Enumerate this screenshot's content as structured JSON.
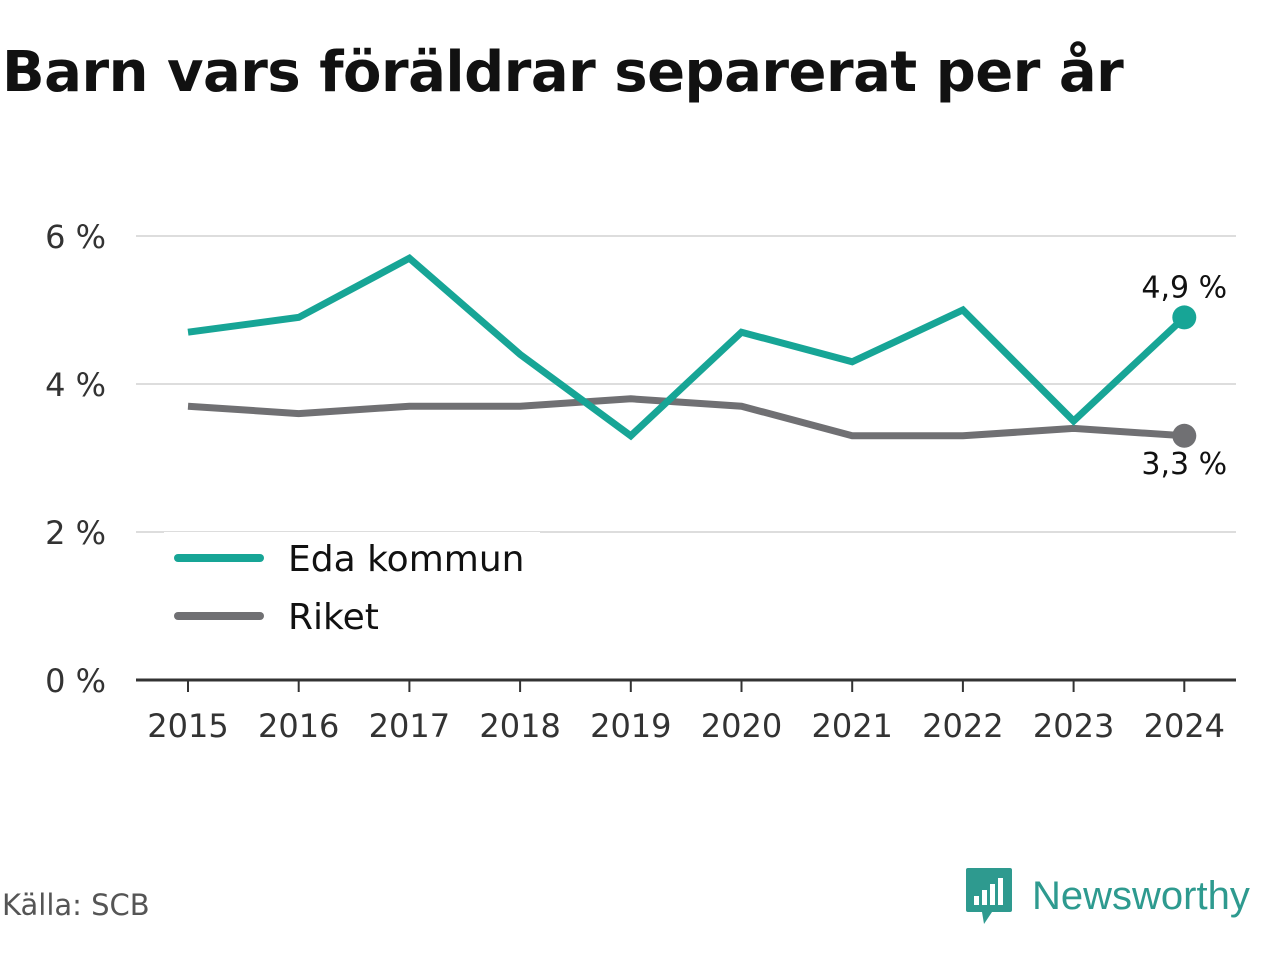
{
  "title": "Barn vars föräldrar separerat per år",
  "source": "Källa: SCB",
  "brand": {
    "name": "Newsworthy",
    "icon": "newsworthy-logo-icon"
  },
  "colors": {
    "eda": "#17a596",
    "riket": "#707073",
    "grid": "#dddddd",
    "axis": "#333333"
  },
  "chart_data": {
    "type": "line",
    "x": [
      "2015",
      "2016",
      "2017",
      "2018",
      "2019",
      "2020",
      "2021",
      "2022",
      "2023",
      "2024"
    ],
    "ylim": [
      0,
      6
    ],
    "yticks": [
      0,
      2,
      4,
      6
    ],
    "ytick_labels": [
      "0 %",
      "2 %",
      "4 %",
      "6 %"
    ],
    "grid": true,
    "legend_position": "bottom-left",
    "series": [
      {
        "name": "Eda kommun",
        "color": "#17a596",
        "values": [
          4.7,
          4.9,
          5.7,
          4.4,
          3.3,
          4.7,
          4.3,
          5.0,
          3.5,
          4.9
        ]
      },
      {
        "name": "Riket",
        "color": "#707073",
        "values": [
          3.7,
          3.6,
          3.7,
          3.7,
          3.8,
          3.7,
          3.3,
          3.3,
          3.4,
          3.3
        ]
      }
    ],
    "end_labels": [
      "4,9 %",
      "3,3 %"
    ]
  }
}
